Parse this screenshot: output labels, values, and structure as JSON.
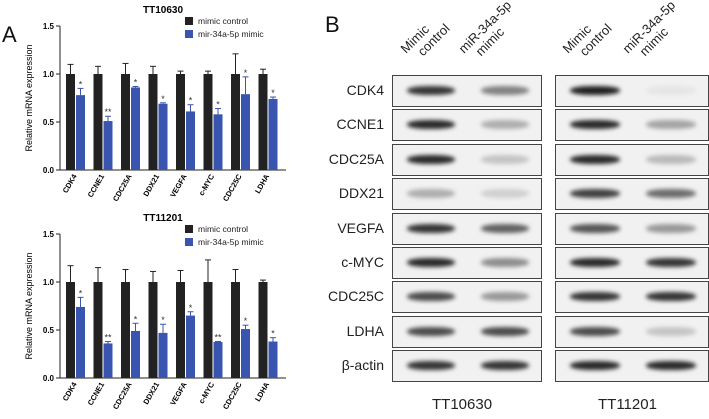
{
  "panel_a_label": "A",
  "panel_b_label": "B",
  "colors": {
    "control": "#222222",
    "mimic": "#3a55b0"
  },
  "chart_data": [
    {
      "type": "bar",
      "title": "TT10630",
      "ylabel": "Relative mRNA expression",
      "ylim": [
        0,
        1.5
      ],
      "yticks": [
        "0.0",
        "0.5",
        "1.0",
        "1.5"
      ],
      "categories": [
        "CDK4",
        "CCNE1",
        "CDC25A",
        "DDX21",
        "VEGFA",
        "c-MYC",
        "CDC25C",
        "LDHA"
      ],
      "legend_position": "top-right",
      "series": [
        {
          "name": "mimic control",
          "values": [
            1.0,
            1.0,
            1.0,
            1.0,
            1.0,
            1.0,
            1.0,
            1.0
          ],
          "error_top": [
            1.1,
            1.08,
            1.11,
            1.08,
            1.03,
            1.03,
            1.21,
            1.05
          ]
        },
        {
          "name": "mir-34a-5p mimic",
          "values": [
            0.78,
            0.51,
            0.86,
            0.69,
            0.61,
            0.58,
            0.79,
            0.74
          ],
          "error_top": [
            0.85,
            0.56,
            0.87,
            0.7,
            0.68,
            0.64,
            0.97,
            0.76
          ],
          "significance": [
            "*",
            "**",
            "*",
            "*",
            "*",
            "*",
            "*",
            "*"
          ]
        }
      ]
    },
    {
      "type": "bar",
      "title": "TT11201",
      "ylabel": "Relative mRNA expression",
      "ylim": [
        0,
        1.5
      ],
      "yticks": [
        "0.0",
        "0.5",
        "1.0",
        "1.5"
      ],
      "categories": [
        "CDK4",
        "CCNE1",
        "CDC25A",
        "DDX21",
        "VEGFA",
        "c-MYC",
        "CDC25C",
        "LDHA"
      ],
      "legend_position": "top-right",
      "series": [
        {
          "name": "mimic control",
          "values": [
            1.0,
            1.0,
            1.0,
            1.0,
            1.0,
            1.0,
            1.0,
            1.0
          ],
          "error_top": [
            1.17,
            1.15,
            1.13,
            1.11,
            1.12,
            1.23,
            1.13,
            1.02
          ]
        },
        {
          "name": "mir-34a-5p mimic",
          "values": [
            0.74,
            0.36,
            0.49,
            0.47,
            0.65,
            0.375,
            0.51,
            0.38
          ],
          "error_top": [
            0.84,
            0.38,
            0.57,
            0.56,
            0.69,
            0.38,
            0.55,
            0.42
          ],
          "significance": [
            "*",
            "**",
            "*",
            "*",
            "*",
            "**",
            "*",
            "*"
          ]
        }
      ]
    }
  ],
  "blot": {
    "column_headers": [
      {
        "line1": "Mimic",
        "line2": "control"
      },
      {
        "line1": "miR-34a-5p",
        "line2": "mimic"
      },
      {
        "line1": "Mimic",
        "line2": "control"
      },
      {
        "line1": "miR-34a-5p",
        "line2": "mimic"
      }
    ],
    "cell_lines": [
      "TT10630",
      "TT11201"
    ],
    "rows": [
      {
        "label": "CDK4",
        "intensity": [
          0.85,
          0.5,
          0.95,
          0.05
        ]
      },
      {
        "label": "CCNE1",
        "intensity": [
          0.9,
          0.3,
          0.9,
          0.35
        ]
      },
      {
        "label": "CDC25A",
        "intensity": [
          0.9,
          0.2,
          0.9,
          0.25
        ]
      },
      {
        "label": "DDX21",
        "intensity": [
          0.3,
          0.15,
          0.8,
          0.6
        ]
      },
      {
        "label": "VEGFA",
        "intensity": [
          0.85,
          0.65,
          0.7,
          0.4
        ]
      },
      {
        "label": "c-MYC",
        "intensity": [
          0.9,
          0.45,
          0.9,
          0.85
        ]
      },
      {
        "label": "CDC25C",
        "intensity": [
          0.75,
          0.4,
          0.85,
          0.85
        ]
      },
      {
        "label": "LDHA",
        "intensity": [
          0.75,
          0.75,
          0.75,
          0.2
        ]
      },
      {
        "label": "β-actin",
        "intensity": [
          0.85,
          0.85,
          0.9,
          0.9
        ]
      }
    ]
  }
}
